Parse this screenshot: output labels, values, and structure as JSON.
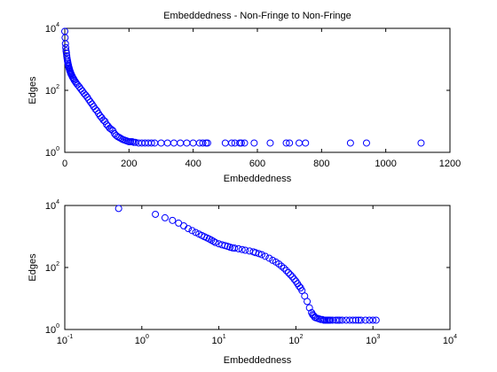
{
  "chart_data": [
    {
      "type": "scatter",
      "title": "Embeddedness - Non-Fringe to Non-Fringe",
      "xlabel": "Embeddedness",
      "ylabel": "Edges",
      "xscale": "linear",
      "yscale": "log",
      "xlim": [
        0,
        1200
      ],
      "ylim": [
        1,
        10000
      ],
      "xticks": [
        "0",
        "200",
        "400",
        "600",
        "800",
        "1000",
        "1200"
      ],
      "yticks": [
        {
          "base": "10",
          "exp": "0"
        },
        {
          "base": "10",
          "exp": "2"
        },
        {
          "base": "10",
          "exp": "4"
        }
      ],
      "marker": "open-circle",
      "color": "#0000ff",
      "grid": false,
      "series": [
        {
          "x": [
            0,
            1,
            2,
            3,
            4,
            5,
            6,
            7,
            8,
            9,
            10,
            11,
            12,
            13,
            14,
            15,
            16,
            17,
            18,
            19,
            20,
            22,
            24,
            26,
            28,
            30,
            33,
            36,
            40,
            45,
            50,
            55,
            60,
            65,
            70,
            75,
            80,
            85,
            90,
            95,
            100,
            105,
            110,
            115,
            120,
            125,
            130,
            135,
            140,
            145,
            150,
            155,
            160,
            165,
            170,
            175,
            180,
            185,
            190,
            195,
            200,
            205,
            210,
            215,
            220,
            230,
            240,
            250,
            260,
            270,
            280,
            300,
            320,
            340,
            360,
            380,
            400,
            420,
            430,
            440,
            445,
            500,
            520,
            530,
            545,
            550,
            560,
            590,
            640,
            690,
            700,
            730,
            750,
            890,
            940,
            1110
          ],
          "y": [
            8000,
            5000,
            3200,
            2400,
            1900,
            1600,
            1300,
            1100,
            950,
            830,
            740,
            660,
            600,
            540,
            500,
            460,
            420,
            400,
            370,
            350,
            330,
            300,
            270,
            250,
            230,
            210,
            190,
            170,
            150,
            130,
            110,
            95,
            80,
            70,
            60,
            50,
            42,
            36,
            30,
            25,
            22,
            18,
            15,
            13,
            11,
            10,
            8,
            7,
            6,
            5.5,
            5,
            4,
            3.5,
            3.2,
            3,
            2.8,
            2.6,
            2.5,
            2.4,
            2.3,
            2.2,
            2.2,
            2.2,
            2.1,
            2.1,
            2,
            2,
            2,
            2,
            2,
            2,
            2,
            2,
            2,
            2,
            2,
            2,
            2,
            2,
            2,
            2,
            2,
            2,
            2,
            2,
            2,
            2,
            2,
            2,
            2,
            2,
            2,
            2,
            2,
            2,
            2
          ]
        }
      ]
    },
    {
      "type": "scatter",
      "title": "",
      "xlabel": "Embeddedness",
      "ylabel": "Edges",
      "xscale": "log",
      "yscale": "log",
      "xlim": [
        0.1,
        10000
      ],
      "ylim": [
        1,
        10000
      ],
      "xticks": [
        {
          "base": "10",
          "exp": "-1"
        },
        {
          "base": "10",
          "exp": "0"
        },
        {
          "base": "10",
          "exp": "1"
        },
        {
          "base": "10",
          "exp": "2"
        },
        {
          "base": "10",
          "exp": "3"
        },
        {
          "base": "10",
          "exp": "4"
        }
      ],
      "yticks": [
        {
          "base": "10",
          "exp": "0"
        },
        {
          "base": "10",
          "exp": "2"
        },
        {
          "base": "10",
          "exp": "4"
        }
      ],
      "marker": "open-circle",
      "color": "#0000ff",
      "grid": false,
      "series": [
        {
          "x": [
            0.5,
            1.5,
            2,
            2.5,
            3,
            3.5,
            4,
            4.5,
            5,
            5.5,
            6,
            6.5,
            7,
            7.5,
            8,
            8.5,
            9,
            10,
            11,
            12,
            13,
            14,
            15,
            16,
            18,
            20,
            22,
            25,
            28,
            30,
            33,
            36,
            40,
            45,
            50,
            55,
            60,
            65,
            70,
            75,
            80,
            85,
            90,
            95,
            100,
            105,
            110,
            115,
            120,
            130,
            140,
            150,
            160,
            165,
            170,
            175,
            180,
            190,
            200,
            210,
            220,
            230,
            240,
            250,
            260,
            270,
            280,
            300,
            330,
            350,
            370,
            400,
            450,
            500,
            550,
            600,
            650,
            700,
            800,
            900,
            1000,
            1100
          ],
          "y": [
            8000,
            5200,
            4000,
            3300,
            2700,
            2200,
            1800,
            1550,
            1350,
            1200,
            1080,
            980,
            900,
            830,
            760,
            700,
            640,
            580,
            540,
            510,
            480,
            450,
            430,
            420,
            400,
            380,
            360,
            340,
            320,
            300,
            280,
            260,
            230,
            200,
            170,
            150,
            130,
            110,
            95,
            80,
            68,
            58,
            50,
            42,
            36,
            30,
            25,
            22,
            18,
            12,
            8,
            5,
            3.5,
            3,
            2.8,
            2.5,
            2.4,
            2.3,
            2.2,
            2.1,
            2.1,
            2,
            2,
            2,
            2,
            2,
            2,
            2,
            2,
            2,
            2,
            2,
            2,
            2,
            2,
            2,
            2,
            2,
            2,
            2,
            2,
            2
          ]
        }
      ]
    }
  ]
}
